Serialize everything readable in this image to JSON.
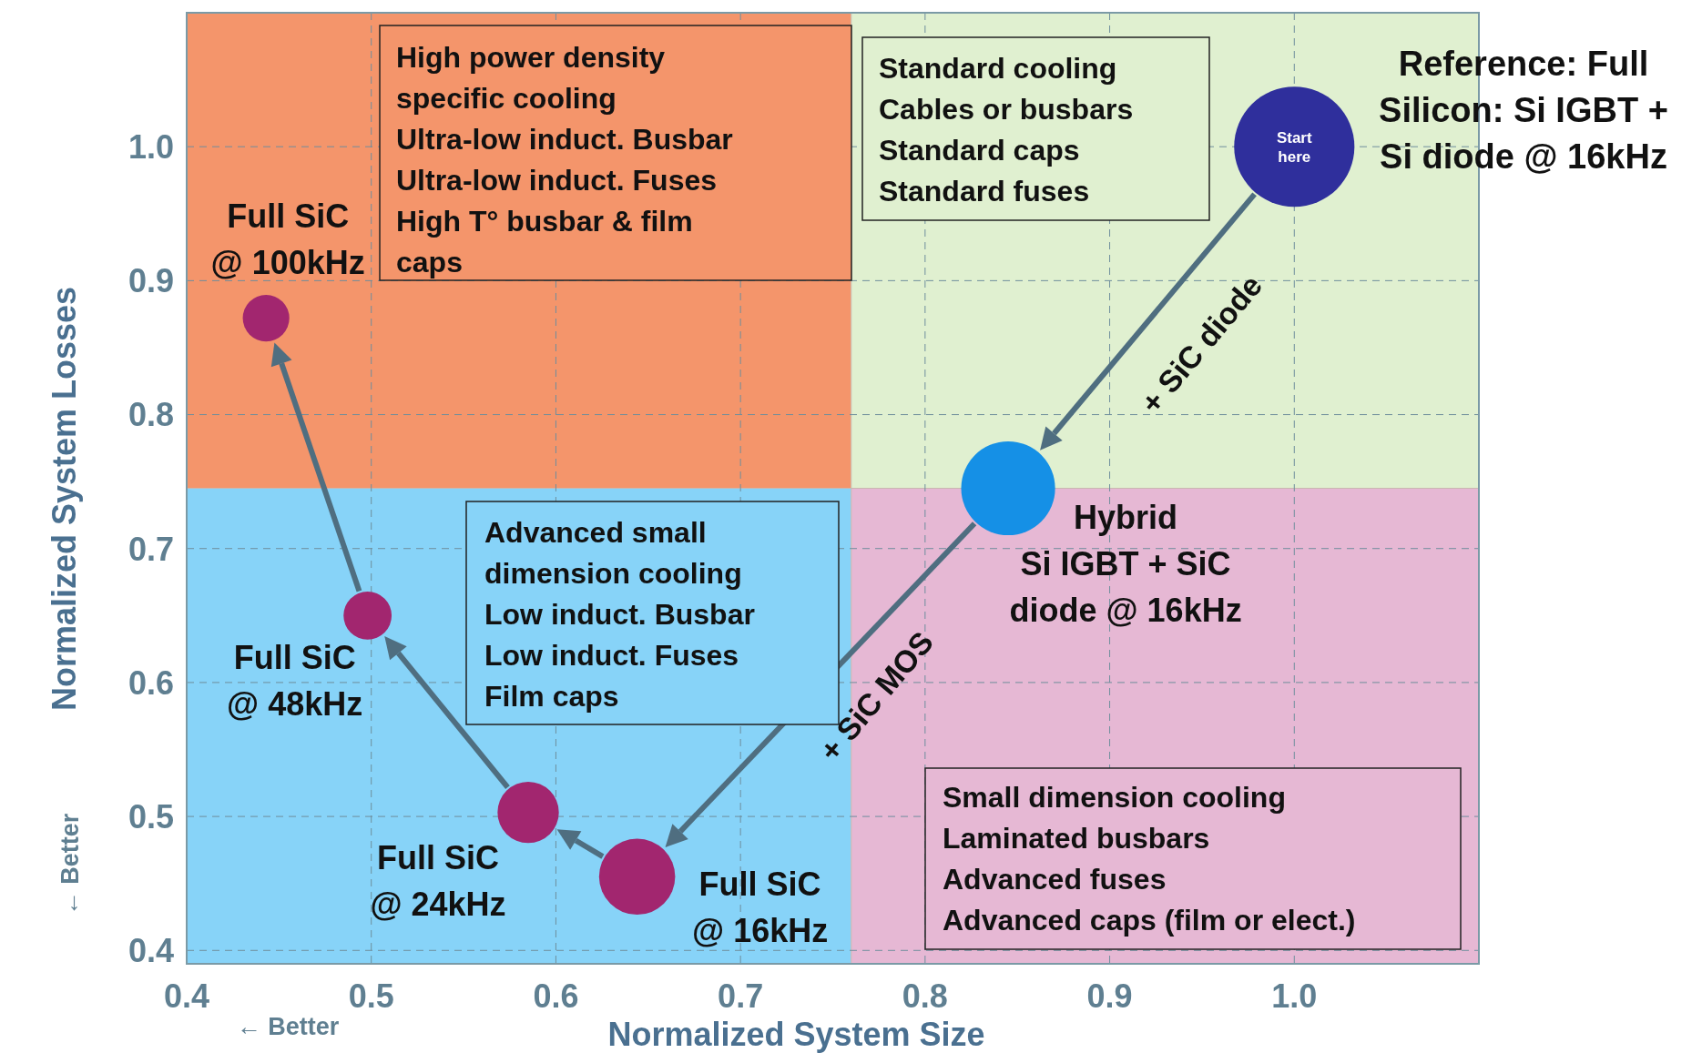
{
  "chart_data": {
    "type": "bubble",
    "xlabel": "Normalized System Size",
    "ylabel": "Normalized System Losses",
    "xlim": [
      0.4,
      1.1
    ],
    "ylim": [
      0.39,
      1.1
    ],
    "xticks": [
      0.4,
      0.5,
      0.6,
      0.7,
      0.8,
      0.9,
      {
        "value": 1,
        "label": "1.0"
      }
    ],
    "yticks": [
      0.4,
      0.5,
      0.6,
      0.7,
      0.8,
      0.9,
      {
        "value": 1,
        "label": "1.0"
      }
    ],
    "grid": true,
    "ref_lines": [
      {
        "axis": "x",
        "value": 0.76,
        "color": "#c9b8b0"
      },
      {
        "axis": "y",
        "value": 0.745,
        "color": "#c9b8b0"
      }
    ],
    "series": [
      {
        "name": "Start\nhere",
        "color": "#2f2f9c",
        "x": [
          1.0
        ],
        "values": [
          1.0
        ],
        "sizes": [
          1
        ]
      },
      {
        "name": "Hybrid\nSi IGBT + SiC\ndiode @ 16kHz",
        "color": "#1590e6",
        "x": [
          0.845
        ],
        "values": [
          0.745
        ],
        "sizes": [
          0.61
        ]
      },
      {
        "name": "Full SiC\n@ 16kHz",
        "color": "#a2266f",
        "x": [
          0.644
        ],
        "values": [
          0.455
        ],
        "sizes": [
          0.4
        ]
      },
      {
        "name": "Full SiC\n@ 24kHz",
        "color": "#a2266f",
        "x": [
          0.585
        ],
        "values": [
          0.503
        ],
        "sizes": [
          0.26
        ]
      },
      {
        "name": "Full SiC\n@ 48kHz",
        "color": "#a2266f",
        "x": [
          0.498
        ],
        "values": [
          0.65
        ],
        "sizes": [
          0.16
        ]
      },
      {
        "name": "Full SiC\n@ 100kHz",
        "color": "#a2266f",
        "x": [
          0.443
        ],
        "values": [
          0.872
        ],
        "sizes": [
          0.15
        ]
      }
    ],
    "annotations": [
      "High power density\nspecific cooling\nUltra-low induct. Busbar\nUltra-low induct. Fuses\nHigh T°  busbar & film\ncaps",
      "Standard cooling\nCables or busbars\nStandard caps\nStandard fuses",
      "Advanced  small\ndimension cooling\nLow induct. Busbar\nLow induct. Fuses\nFilm caps",
      "Small dimension  cooling\nLaminated busbars\nAdvanced fuses\nAdvanced caps (film or elect.)",
      "Reference: Full\nSilicon: Si IGBT +\nSi diode @ 16kHz",
      "+ SiC diode",
      "+ SiC MOS",
      "← Better",
      "← Better"
    ]
  }
}
